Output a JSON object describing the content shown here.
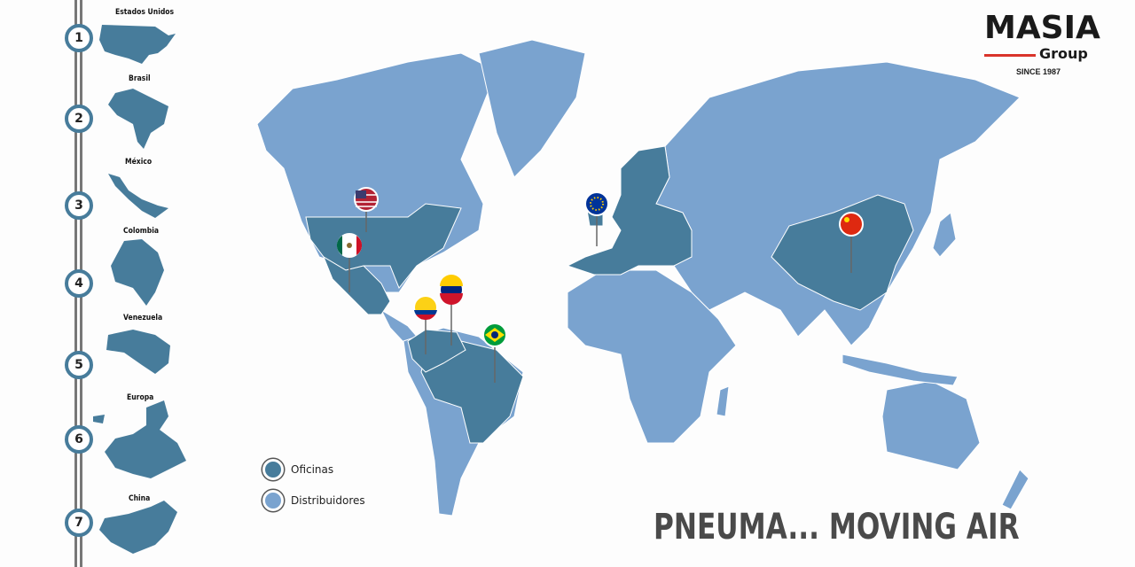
{
  "brand": {
    "name": "MASIA",
    "sub": "Group",
    "since": "SINCE 1987",
    "accent": "#d9342b"
  },
  "colors": {
    "offices": "#477c9b",
    "distributors": "#7aa3cf"
  },
  "timeline": [
    {
      "num": "1",
      "label": "Estados Unidos"
    },
    {
      "num": "2",
      "label": "Brasil"
    },
    {
      "num": "3",
      "label": "México"
    },
    {
      "num": "4",
      "label": "Colombia"
    },
    {
      "num": "5",
      "label": "Venezuela"
    },
    {
      "num": "6",
      "label": "Europa"
    },
    {
      "num": "7",
      "label": "China"
    }
  ],
  "legend": {
    "offices": "Oficinas",
    "distributors": "Distribuidores"
  },
  "pins": [
    "usa-flag",
    "mexico-flag",
    "venezuela-flag",
    "colombia-flag",
    "brazil-flag",
    "eu-flag",
    "china-flag"
  ],
  "tagline": "PNEUMA... MOVING AIR"
}
